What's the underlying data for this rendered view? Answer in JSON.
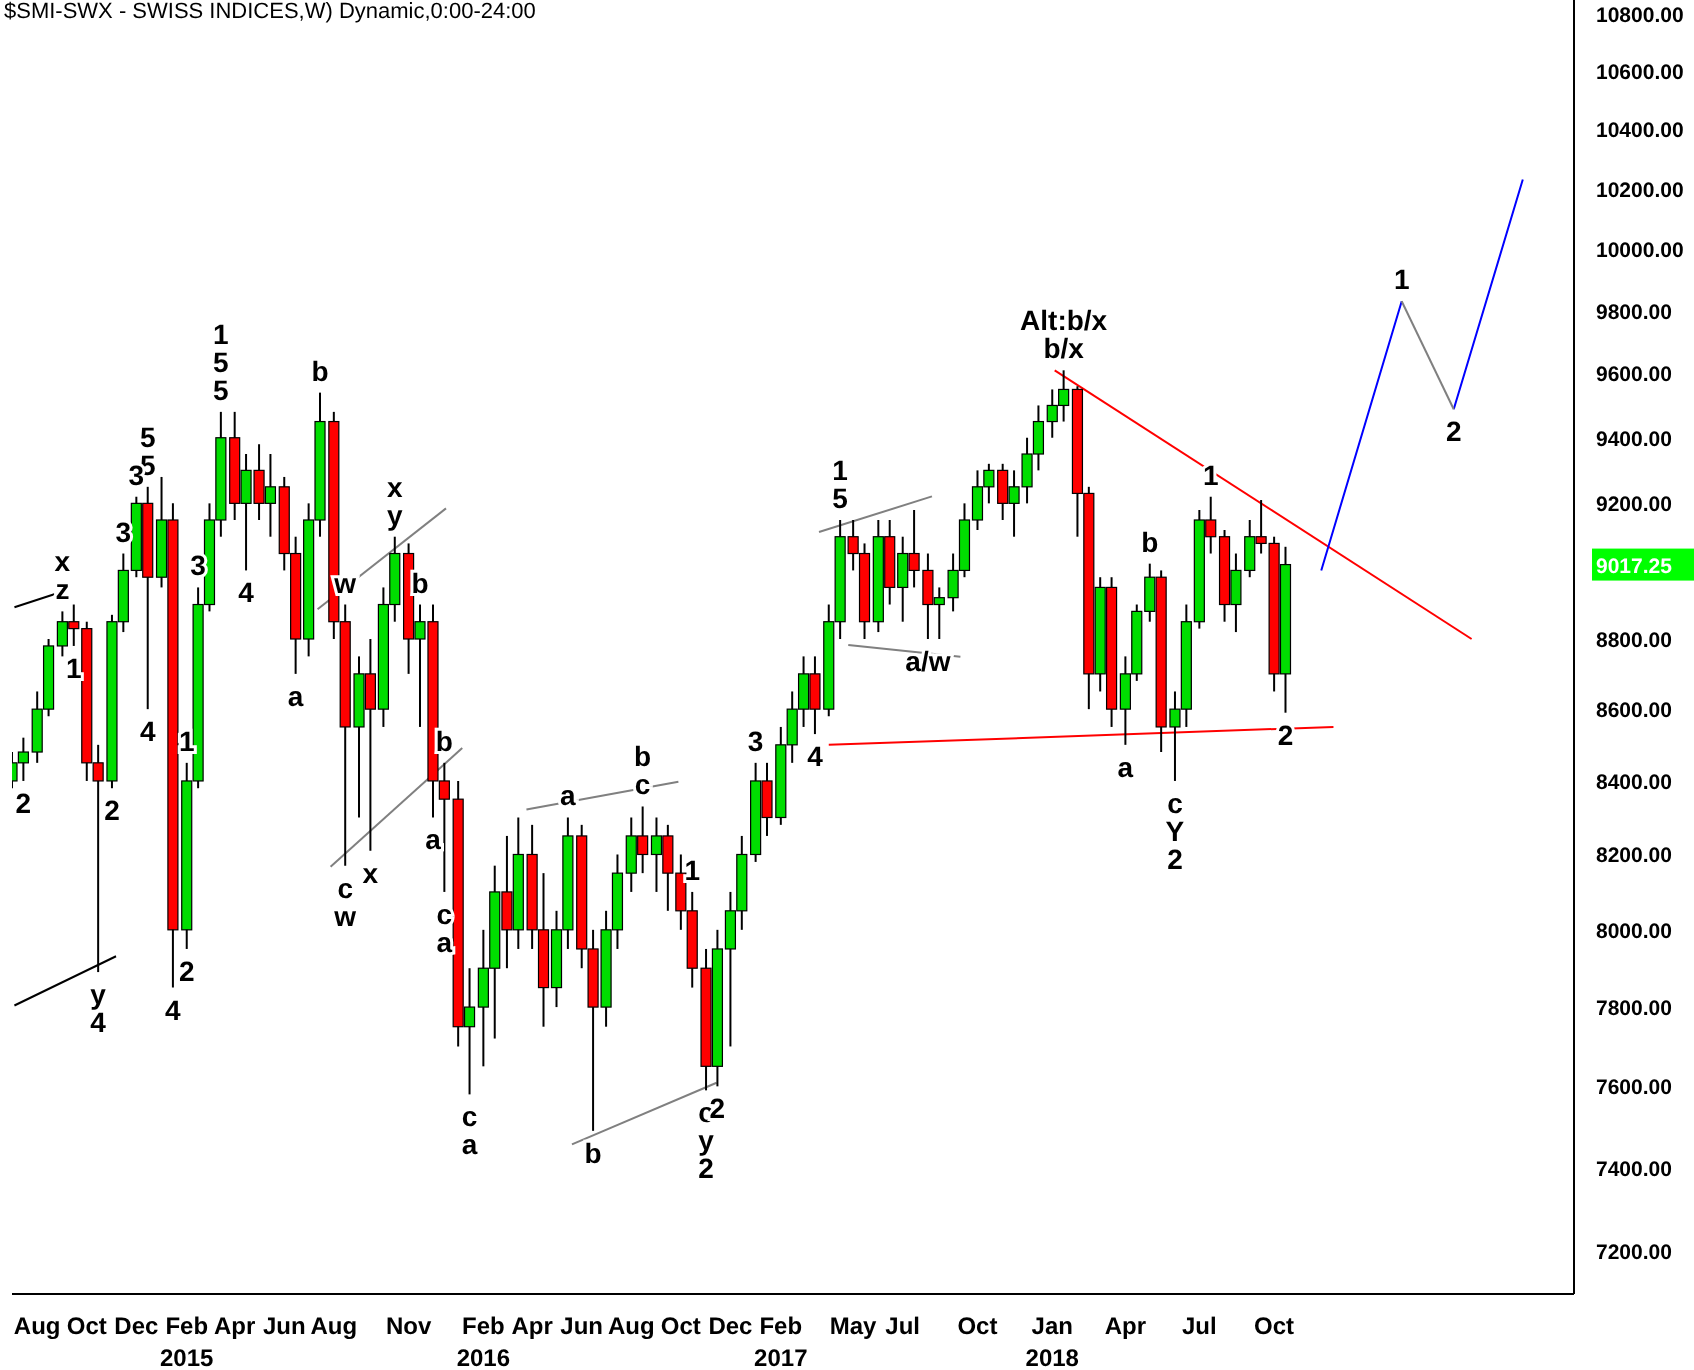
{
  "chart_data": {
    "type": "candlestick",
    "title": "$SMI-SWX - SWISS INDICES,W) Dynamic,0:00-24:00",
    "x": [
      "2014-07-01",
      "2014-07-15",
      "2014-08-01",
      "2014-08-15",
      "2014-09-01",
      "2014-09-15",
      "2014-10-01",
      "2014-10-15",
      "2014-11-01",
      "2014-11-15",
      "2014-12-01",
      "2014-12-15",
      "2015-01-01",
      "2015-01-15",
      "2015-02-01",
      "2015-02-15",
      "2015-03-01",
      "2015-03-15",
      "2015-04-01",
      "2015-04-15",
      "2015-05-01",
      "2015-05-15",
      "2015-06-01",
      "2015-06-15",
      "2015-07-01",
      "2015-07-15",
      "2015-08-01",
      "2015-08-15",
      "2015-09-01",
      "2015-09-15",
      "2015-10-01",
      "2015-10-15",
      "2015-11-01",
      "2015-11-15",
      "2015-12-01",
      "2015-12-15",
      "2016-01-01",
      "2016-01-15",
      "2016-02-01",
      "2016-02-15",
      "2016-03-01",
      "2016-03-15",
      "2016-04-01",
      "2016-04-15",
      "2016-05-01",
      "2016-05-15",
      "2016-06-01",
      "2016-06-15",
      "2016-07-01",
      "2016-07-15",
      "2016-08-01",
      "2016-08-15",
      "2016-09-01",
      "2016-09-15",
      "2016-10-01",
      "2016-10-15",
      "2016-11-01",
      "2016-11-15",
      "2016-12-01",
      "2016-12-15",
      "2017-01-01",
      "2017-01-15",
      "2017-02-01",
      "2017-02-15",
      "2017-03-01",
      "2017-03-15",
      "2017-04-01",
      "2017-04-15",
      "2017-05-01",
      "2017-05-15",
      "2017-06-01",
      "2017-06-15",
      "2017-07-01",
      "2017-07-15",
      "2017-08-01",
      "2017-08-15",
      "2017-09-01",
      "2017-09-15",
      "2017-10-01",
      "2017-10-15",
      "2017-11-01",
      "2017-11-15",
      "2017-12-01",
      "2017-12-15",
      "2018-01-01",
      "2018-01-15",
      "2018-02-01",
      "2018-02-15",
      "2018-03-01",
      "2018-03-15",
      "2018-04-01",
      "2018-04-15",
      "2018-05-01",
      "2018-05-15",
      "2018-06-01",
      "2018-06-15",
      "2018-07-01",
      "2018-07-15",
      "2018-08-01",
      "2018-08-15",
      "2018-09-01",
      "2018-09-15",
      "2018-10-01",
      "2018-10-15"
    ],
    "ohlc": [
      [
        8400,
        8480,
        8380,
        8450
      ],
      [
        8450,
        8520,
        8400,
        8480
      ],
      [
        8480,
        8650,
        8450,
        8600
      ],
      [
        8600,
        8800,
        8580,
        8780
      ],
      [
        8780,
        8880,
        8750,
        8850
      ],
      [
        8850,
        8900,
        8780,
        8830
      ],
      [
        8830,
        8850,
        8400,
        8450
      ],
      [
        8450,
        8500,
        7890,
        8400
      ],
      [
        8400,
        8870,
        8380,
        8850
      ],
      [
        8850,
        9050,
        8820,
        9000
      ],
      [
        9000,
        9220,
        8980,
        9200
      ],
      [
        9200,
        9250,
        8600,
        8980
      ],
      [
        8980,
        9280,
        8950,
        9150
      ],
      [
        9150,
        9200,
        7850,
        8000
      ],
      [
        8000,
        8450,
        7950,
        8400
      ],
      [
        8400,
        8950,
        8380,
        8900
      ],
      [
        8900,
        9200,
        8880,
        9150
      ],
      [
        9150,
        9480,
        9100,
        9400
      ],
      [
        9400,
        9480,
        9150,
        9200
      ],
      [
        9200,
        9350,
        9000,
        9300
      ],
      [
        9300,
        9380,
        9150,
        9200
      ],
      [
        9200,
        9350,
        9100,
        9250
      ],
      [
        9250,
        9280,
        9000,
        9050
      ],
      [
        9050,
        9100,
        8700,
        8800
      ],
      [
        8800,
        9200,
        8750,
        9150
      ],
      [
        9150,
        9540,
        9100,
        9450
      ],
      [
        9450,
        9480,
        8800,
        8850
      ],
      [
        8850,
        8900,
        8170,
        8550
      ],
      [
        8550,
        8750,
        8300,
        8700
      ],
      [
        8700,
        8800,
        8210,
        8600
      ],
      [
        8600,
        8950,
        8550,
        8900
      ],
      [
        8900,
        9100,
        8850,
        9050
      ],
      [
        9050,
        9080,
        8700,
        8800
      ],
      [
        8800,
        8900,
        8550,
        8850
      ],
      [
        8850,
        8900,
        8300,
        8400
      ],
      [
        8400,
        8450,
        8100,
        8350
      ],
      [
        8350,
        8400,
        7700,
        7750
      ],
      [
        7750,
        7900,
        7580,
        7800
      ],
      [
        7800,
        8000,
        7650,
        7900
      ],
      [
        7900,
        8170,
        7720,
        8100
      ],
      [
        8100,
        8250,
        7900,
        8000
      ],
      [
        8000,
        8300,
        7950,
        8200
      ],
      [
        8200,
        8280,
        7950,
        8000
      ],
      [
        8000,
        8150,
        7750,
        7850
      ],
      [
        7850,
        8050,
        7800,
        8000
      ],
      [
        8000,
        8300,
        7950,
        8250
      ],
      [
        8250,
        8280,
        7900,
        7950
      ],
      [
        7950,
        8000,
        7490,
        7800
      ],
      [
        7800,
        8050,
        7750,
        8000
      ],
      [
        8000,
        8200,
        7950,
        8150
      ],
      [
        8150,
        8300,
        8100,
        8250
      ],
      [
        8250,
        8330,
        8150,
        8200
      ],
      [
        8200,
        8300,
        8100,
        8250
      ],
      [
        8250,
        8280,
        8050,
        8150
      ],
      [
        8150,
        8200,
        8000,
        8050
      ],
      [
        8050,
        8100,
        7850,
        7900
      ],
      [
        7900,
        7950,
        7590,
        7650
      ],
      [
        7650,
        8000,
        7600,
        7950
      ],
      [
        7950,
        8100,
        7700,
        8050
      ],
      [
        8050,
        8250,
        8000,
        8200
      ],
      [
        8200,
        8450,
        8180,
        8400
      ],
      [
        8400,
        8450,
        8250,
        8300
      ],
      [
        8300,
        8550,
        8280,
        8500
      ],
      [
        8500,
        8650,
        8450,
        8600
      ],
      [
        8600,
        8750,
        8550,
        8700
      ],
      [
        8700,
        8750,
        8530,
        8600
      ],
      [
        8600,
        8900,
        8580,
        8850
      ],
      [
        8850,
        9150,
        8800,
        9100
      ],
      [
        9100,
        9150,
        9000,
        9050
      ],
      [
        9050,
        9080,
        8800,
        8850
      ],
      [
        8850,
        9150,
        8820,
        9100
      ],
      [
        9100,
        9150,
        8900,
        8950
      ],
      [
        8950,
        9100,
        8850,
        9050
      ],
      [
        9050,
        9180,
        8950,
        9000
      ],
      [
        9000,
        9050,
        8800,
        8900
      ],
      [
        8900,
        8950,
        8800,
        8920
      ],
      [
        8920,
        9050,
        8880,
        9000
      ],
      [
        9000,
        9200,
        8980,
        9150
      ],
      [
        9150,
        9300,
        9120,
        9250
      ],
      [
        9250,
        9320,
        9200,
        9300
      ],
      [
        9300,
        9320,
        9150,
        9200
      ],
      [
        9200,
        9300,
        9100,
        9250
      ],
      [
        9250,
        9400,
        9200,
        9350
      ],
      [
        9350,
        9500,
        9300,
        9450
      ],
      [
        9450,
        9550,
        9400,
        9500
      ],
      [
        9500,
        9610,
        9450,
        9550
      ],
      [
        9550,
        9560,
        9100,
        9230
      ],
      [
        9230,
        9250,
        8600,
        8700
      ],
      [
        8700,
        8980,
        8650,
        8950
      ],
      [
        8950,
        8980,
        8550,
        8600
      ],
      [
        8600,
        8750,
        8500,
        8700
      ],
      [
        8700,
        8900,
        8680,
        8880
      ],
      [
        8880,
        9020,
        8850,
        8980
      ],
      [
        8980,
        9000,
        8480,
        8550
      ],
      [
        8550,
        8650,
        8400,
        8600
      ],
      [
        8600,
        8900,
        8550,
        8850
      ],
      [
        8850,
        9180,
        8830,
        9150
      ],
      [
        9150,
        9220,
        9050,
        9100
      ],
      [
        9100,
        9120,
        8850,
        8900
      ],
      [
        8900,
        9050,
        8820,
        9000
      ],
      [
        9000,
        9150,
        8980,
        9100
      ],
      [
        9100,
        9210,
        9050,
        9080
      ],
      [
        9080,
        9100,
        8650,
        8700
      ],
      [
        8700,
        9070,
        8590,
        9017.25
      ]
    ],
    "series": [
      {
        "type": "line",
        "color": "#ff0000",
        "x": [
          "2018-01-04",
          "2019-06-01"
        ],
        "values": [
          9610,
          8800
        ]
      },
      {
        "type": "line",
        "color": "#ff0000",
        "x": [
          "2017-04-01",
          "2018-12-13"
        ],
        "values": [
          8500,
          8550
        ]
      },
      {
        "type": "line",
        "color": "#0000ff",
        "x": [
          "2018-11-28",
          "2019-03-07",
          "2019-04-10",
          "2019-05-10",
          "2019-08-03"
        ],
        "values": [
          9000,
          9830,
          null,
          9488,
          10230
        ]
      },
      {
        "type": "line",
        "color": "#808080",
        "x": [
          "2019-03-07",
          "2019-05-10"
        ],
        "values": [
          9830,
          9488
        ]
      },
      {
        "type": "line",
        "color": "#808080",
        "x": [
          "2016-03-25",
          "2016-09-28"
        ],
        "values": [
          8322,
          8398
        ]
      },
      {
        "type": "line",
        "color": "#808080",
        "x": [
          "2016-05-20",
          "2016-11-14"
        ],
        "values": [
          7457,
          7609
        ]
      },
      {
        "type": "line",
        "color": "#808080",
        "x": [
          "2017-03-20",
          "2017-08-06"
        ],
        "values": [
          9114,
          9221
        ]
      },
      {
        "type": "line",
        "color": "#808080",
        "x": [
          "2017-04-25",
          "2017-09-10"
        ],
        "values": [
          8783,
          8749
        ]
      },
      {
        "type": "line",
        "color": "#808080",
        "x": [
          "2015-07-12",
          "2015-12-17"
        ],
        "values": [
          8886,
          9185
        ]
      },
      {
        "type": "line",
        "color": "#808080",
        "x": [
          "2015-07-28",
          "2016-01-06"
        ],
        "values": [
          8167,
          8491
        ]
      },
      {
        "type": "line",
        "color": "#000000",
        "x": [
          "2014-07-04",
          "2014-08-22"
        ],
        "values": [
          8892,
          8930
        ]
      },
      {
        "type": "line",
        "color": "#000000",
        "x": [
          "2014-07-04",
          "2014-11-06"
        ],
        "values": [
          7804,
          7931
        ]
      }
    ],
    "annotations": [
      {
        "text": "z",
        "x": "2014-09-01",
        "y": 8880
      },
      {
        "text": "x",
        "x": "2014-09-01",
        "y": 8880
      },
      {
        "text": "1",
        "x": "2014-09-15",
        "y": 8780
      },
      {
        "text": "2",
        "x": "2014-11-01",
        "y": 8380
      },
      {
        "text": "2",
        "x": "2014-07-15",
        "y": 8400
      },
      {
        "text": "y",
        "x": "2014-10-15",
        "y": 7890
      },
      {
        "text": "4",
        "x": "2014-10-15",
        "y": 7890
      },
      {
        "text": "3",
        "x": "2014-11-15",
        "y": 9050
      },
      {
        "text": "5",
        "x": "2014-12-15",
        "y": 9250
      },
      {
        "text": "5",
        "x": "2014-12-15",
        "y": 9250
      },
      {
        "text": "3",
        "x": "2014-12-01",
        "y": 9220
      },
      {
        "text": "4",
        "x": "2014-12-15",
        "y": 8600
      },
      {
        "text": "1",
        "x": "2015-02-01",
        "y": 8450
      },
      {
        "text": "4",
        "x": "2015-01-15",
        "y": 7850
      },
      {
        "text": "2",
        "x": "2015-02-01",
        "y": 7950
      },
      {
        "text": "3",
        "x": "2015-02-15",
        "y": 8950
      },
      {
        "text": "5",
        "x": "2015-03-15",
        "y": 9480
      },
      {
        "text": "5",
        "x": "2015-03-15",
        "y": 9480
      },
      {
        "text": "1",
        "x": "2015-03-15",
        "y": 9480
      },
      {
        "text": "4",
        "x": "2015-04-15",
        "y": 9000
      },
      {
        "text": "a",
        "x": "2015-06-15",
        "y": 8700
      },
      {
        "text": "b",
        "x": "2015-07-15",
        "y": 9540
      },
      {
        "text": "w",
        "x": "2015-08-15",
        "y": 8900
      },
      {
        "text": "c",
        "x": "2015-08-15",
        "y": 8170
      },
      {
        "text": "w",
        "x": "2015-08-15",
        "y": 8170
      },
      {
        "text": "x",
        "x": "2015-09-15",
        "y": 8210
      },
      {
        "text": "y",
        "x": "2015-10-15",
        "y": 9100
      },
      {
        "text": "x",
        "x": "2015-10-15",
        "y": 9100
      },
      {
        "text": "b",
        "x": "2015-11-15",
        "y": 8900
      },
      {
        "text": "a",
        "x": "2015-12-01",
        "y": 8300
      },
      {
        "text": "b",
        "x": "2015-12-15",
        "y": 8450
      },
      {
        "text": "c",
        "x": "2015-12-15",
        "y": 8100
      },
      {
        "text": "a",
        "x": "2015-12-15",
        "y": 8100
      },
      {
        "text": "c",
        "x": "2016-01-15",
        "y": 7580
      },
      {
        "text": "a",
        "x": "2016-01-15",
        "y": 7580
      },
      {
        "text": "a",
        "x": "2016-05-15",
        "y": 8300
      },
      {
        "text": "b",
        "x": "2016-06-15",
        "y": 7490
      },
      {
        "text": "c",
        "x": "2016-08-15",
        "y": 8330
      },
      {
        "text": "b",
        "x": "2016-08-15",
        "y": 8330
      },
      {
        "text": "1",
        "x": "2016-10-15",
        "y": 8100
      },
      {
        "text": "c",
        "x": "2016-11-01",
        "y": 7590
      },
      {
        "text": "y",
        "x": "2016-11-01",
        "y": 7590
      },
      {
        "text": "2",
        "x": "2016-11-01",
        "y": 7590
      },
      {
        "text": "2",
        "x": "2016-11-15",
        "y": 7600
      },
      {
        "text": "3",
        "x": "2017-01-01",
        "y": 8450
      },
      {
        "text": "4",
        "x": "2017-03-15",
        "y": 8530
      },
      {
        "text": "5",
        "x": "2017-04-15",
        "y": 9150
      },
      {
        "text": "1",
        "x": "2017-04-15",
        "y": 9150
      },
      {
        "text": "a/w",
        "x": "2017-08-01",
        "y": 8800
      },
      {
        "text": "b/x",
        "x": "2018-01-15",
        "y": 9610
      },
      {
        "text": "Alt:b/x",
        "x": "2018-01-15",
        "y": 9610
      },
      {
        "text": "a",
        "x": "2018-04-01",
        "y": 8500
      },
      {
        "text": "b",
        "x": "2018-05-01",
        "y": 9020
      },
      {
        "text": "c",
        "x": "2018-06-01",
        "y": 8400
      },
      {
        "text": "Y",
        "x": "2018-06-01",
        "y": 8400
      },
      {
        "text": "2",
        "x": "2018-06-01",
        "y": 8400
      },
      {
        "text": "1",
        "x": "2018-07-15",
        "y": 9220
      },
      {
        "text": "2",
        "x": "2018-10-15",
        "y": 8590
      },
      {
        "text": "1",
        "x": "2019-03-07",
        "y": 9830
      },
      {
        "text": "2",
        "x": "2019-05-10",
        "y": 9488
      }
    ],
    "xlim": [
      "2014-07-01",
      "2019-10-05"
    ],
    "xticks": [
      {
        "value": "2014-08-01",
        "label": "Aug"
      },
      {
        "value": "2014-10-01",
        "label": "Oct"
      },
      {
        "value": "2014-12-01",
        "label": "Dec"
      },
      {
        "value": "2015-02-01",
        "label": "Feb\n2015"
      },
      {
        "value": "2015-04-01",
        "label": "Apr"
      },
      {
        "value": "2015-06-01",
        "label": "Jun"
      },
      {
        "value": "2015-08-01",
        "label": "Aug"
      },
      {
        "value": "2015-11-01",
        "label": "Nov"
      },
      {
        "value": "2016-02-01",
        "label": "Feb\n2016"
      },
      {
        "value": "2016-04-01",
        "label": "Apr"
      },
      {
        "value": "2016-06-01",
        "label": "Jun"
      },
      {
        "value": "2016-08-01",
        "label": "Aug"
      },
      {
        "value": "2016-10-01",
        "label": "Oct"
      },
      {
        "value": "2016-12-01",
        "label": "Dec"
      },
      {
        "value": "2017-02-01",
        "label": "Feb\n2017"
      },
      {
        "value": "2017-05-01",
        "label": "May"
      },
      {
        "value": "2017-07-01",
        "label": "Jul"
      },
      {
        "value": "2017-10-01",
        "label": "Oct"
      },
      {
        "value": "2018-01-01",
        "label": "Jan\n2018"
      },
      {
        "value": "2018-04-01",
        "label": "Apr"
      },
      {
        "value": "2018-07-01",
        "label": "Jul"
      },
      {
        "value": "2018-10-01",
        "label": "Oct"
      }
    ],
    "ylim": [
      7100,
      10850
    ],
    "yticks": [
      {
        "value": 7200,
        "label": "7200.00"
      },
      {
        "value": 7400,
        "label": "7400.00"
      },
      {
        "value": 7600,
        "label": "7600.00"
      },
      {
        "value": 7800,
        "label": "7800.00"
      },
      {
        "value": 8000,
        "label": "8000.00"
      },
      {
        "value": 8200,
        "label": "8200.00"
      },
      {
        "value": 8400,
        "label": "8400.00"
      },
      {
        "value": 8600,
        "label": "8600.00"
      },
      {
        "value": 8800,
        "label": "8800.00"
      },
      {
        "value": 9017.25,
        "label": "9017.25"
      },
      {
        "value": 9200,
        "label": "9200.00"
      },
      {
        "value": 9400,
        "label": "9400.00"
      },
      {
        "value": 9600,
        "label": "9600.00"
      },
      {
        "value": 9800,
        "label": "9800.00"
      },
      {
        "value": 10000,
        "label": "10000.00"
      },
      {
        "value": 10200,
        "label": "10200.00"
      },
      {
        "value": 10400,
        "label": "10400.00"
      },
      {
        "value": 10600,
        "label": "10600.00"
      },
      {
        "value": 10800,
        "label": "10800.00"
      }
    ],
    "log": true
  }
}
